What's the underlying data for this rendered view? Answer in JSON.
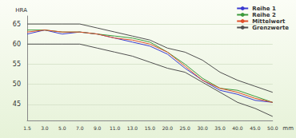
{
  "chart_data": {
    "type": "line",
    "y_label": "HRA",
    "x_label": "mm",
    "categories": [
      "1.5",
      "3.0",
      "5.0",
      "7.0",
      "9.0",
      "11.0",
      "13.0",
      "15.0",
      "20.0",
      "25.0",
      "30.0",
      "35.0",
      "40.0",
      "45.0",
      "50.0"
    ],
    "series": [
      {
        "name": "Reihe 1",
        "color": "#3a3ad0",
        "values": [
          62.5,
          63.5,
          62.5,
          63,
          62.5,
          61.5,
          60.5,
          59.5,
          57.5,
          54,
          51,
          48.5,
          47.5,
          46,
          45.5
        ]
      },
      {
        "name": "Reihe 2",
        "color": "#3c9a3c",
        "values": [
          63.5,
          63.5,
          63,
          63,
          62.5,
          62,
          61.5,
          60.5,
          58,
          55,
          51.5,
          49,
          48.5,
          47,
          45.5
        ]
      },
      {
        "name": "Mittelwert",
        "color": "#e0502a",
        "values": [
          63,
          63.5,
          63,
          63,
          62.5,
          61.5,
          61,
          60,
          58,
          54.5,
          51,
          49,
          48,
          46.5,
          45.5
        ]
      },
      {
        "name": "Grenzwerte",
        "color": "#505050",
        "values": [
          65,
          65,
          65,
          65,
          64,
          63,
          62,
          61,
          59,
          58,
          56,
          53,
          51,
          49.5,
          48
        ]
      },
      {
        "name": "Grenzwerte",
        "color": "#505050",
        "values": [
          60,
          60,
          60,
          60,
          59,
          58,
          57,
          55.5,
          54,
          53,
          50.5,
          48,
          45.5,
          44,
          42
        ]
      }
    ],
    "ylim": [
      41,
      67
    ],
    "yticks": [
      45,
      50,
      55,
      60,
      65
    ],
    "grid": true,
    "legend": "top-right"
  }
}
